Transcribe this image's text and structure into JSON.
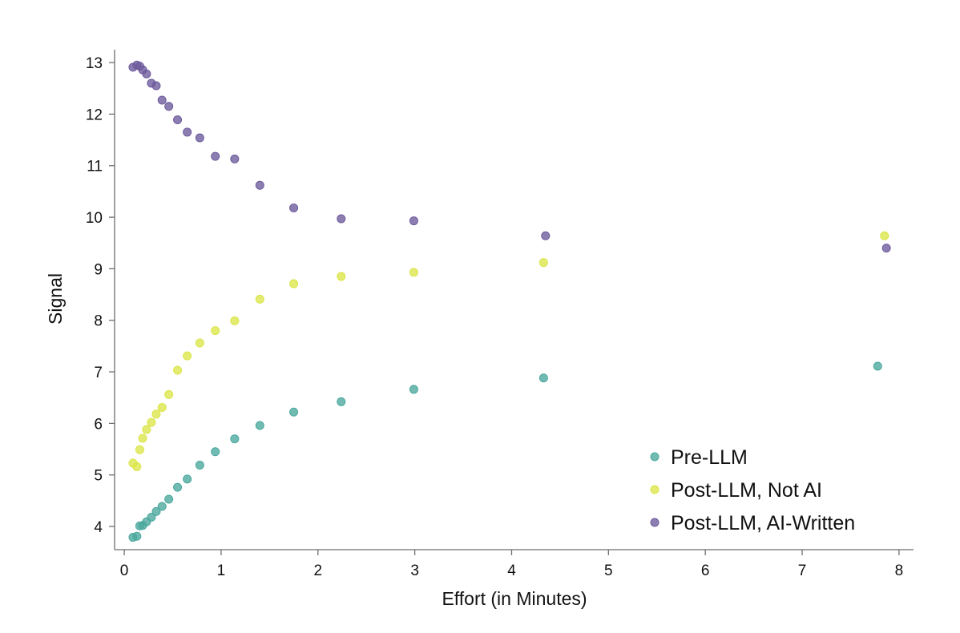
{
  "chart_data": {
    "type": "scatter",
    "title": "",
    "xlabel": "Effort (in Minutes)",
    "ylabel": "Signal",
    "xlim": [
      -0.1,
      8.15
    ],
    "ylim": [
      3.55,
      13.25
    ],
    "xticks": [
      0,
      1,
      2,
      3,
      4,
      5,
      6,
      7,
      8
    ],
    "yticks": [
      4,
      5,
      6,
      7,
      8,
      9,
      10,
      11,
      12,
      13
    ],
    "grid": false,
    "legend_position": "bottom-right",
    "series": [
      {
        "name": "Pre-LLM",
        "color": "#4aa89e",
        "points": [
          [
            0.09,
            3.79
          ],
          [
            0.13,
            3.81
          ],
          [
            0.16,
            4.01
          ],
          [
            0.19,
            4.02
          ],
          [
            0.23,
            4.09
          ],
          [
            0.28,
            4.18
          ],
          [
            0.33,
            4.29
          ],
          [
            0.39,
            4.39
          ],
          [
            0.46,
            4.53
          ],
          [
            0.55,
            4.76
          ],
          [
            0.65,
            4.92
          ],
          [
            0.78,
            5.19
          ],
          [
            0.94,
            5.45
          ],
          [
            1.14,
            5.7
          ],
          [
            1.4,
            5.96
          ],
          [
            1.75,
            6.22
          ],
          [
            2.24,
            6.42
          ],
          [
            2.99,
            6.66
          ],
          [
            4.33,
            6.88
          ],
          [
            7.78,
            7.11
          ]
        ]
      },
      {
        "name": "Post-LLM, Not AI",
        "color": "#dbe548",
        "points": [
          [
            0.09,
            5.23
          ],
          [
            0.13,
            5.16
          ],
          [
            0.16,
            5.49
          ],
          [
            0.19,
            5.71
          ],
          [
            0.23,
            5.88
          ],
          [
            0.28,
            6.02
          ],
          [
            0.33,
            6.18
          ],
          [
            0.39,
            6.31
          ],
          [
            0.46,
            6.56
          ],
          [
            0.55,
            7.03
          ],
          [
            0.65,
            7.31
          ],
          [
            0.78,
            7.56
          ],
          [
            0.94,
            7.8
          ],
          [
            1.14,
            7.99
          ],
          [
            1.4,
            8.41
          ],
          [
            1.75,
            8.71
          ],
          [
            2.24,
            8.85
          ],
          [
            2.99,
            8.93
          ],
          [
            4.33,
            9.12
          ],
          [
            7.85,
            9.64
          ]
        ]
      },
      {
        "name": "Post-LLM, AI-Written",
        "color": "#6d5a9c",
        "points": [
          [
            0.09,
            12.91
          ],
          [
            0.13,
            12.95
          ],
          [
            0.16,
            12.93
          ],
          [
            0.19,
            12.86
          ],
          [
            0.23,
            12.78
          ],
          [
            0.28,
            12.6
          ],
          [
            0.33,
            12.55
          ],
          [
            0.39,
            12.27
          ],
          [
            0.46,
            12.15
          ],
          [
            0.55,
            11.89
          ],
          [
            0.65,
            11.65
          ],
          [
            0.78,
            11.54
          ],
          [
            0.94,
            11.18
          ],
          [
            1.14,
            11.13
          ],
          [
            1.4,
            10.62
          ],
          [
            1.75,
            10.18
          ],
          [
            2.24,
            9.97
          ],
          [
            2.99,
            9.93
          ],
          [
            4.35,
            9.64
          ],
          [
            7.87,
            9.4
          ]
        ]
      }
    ]
  }
}
